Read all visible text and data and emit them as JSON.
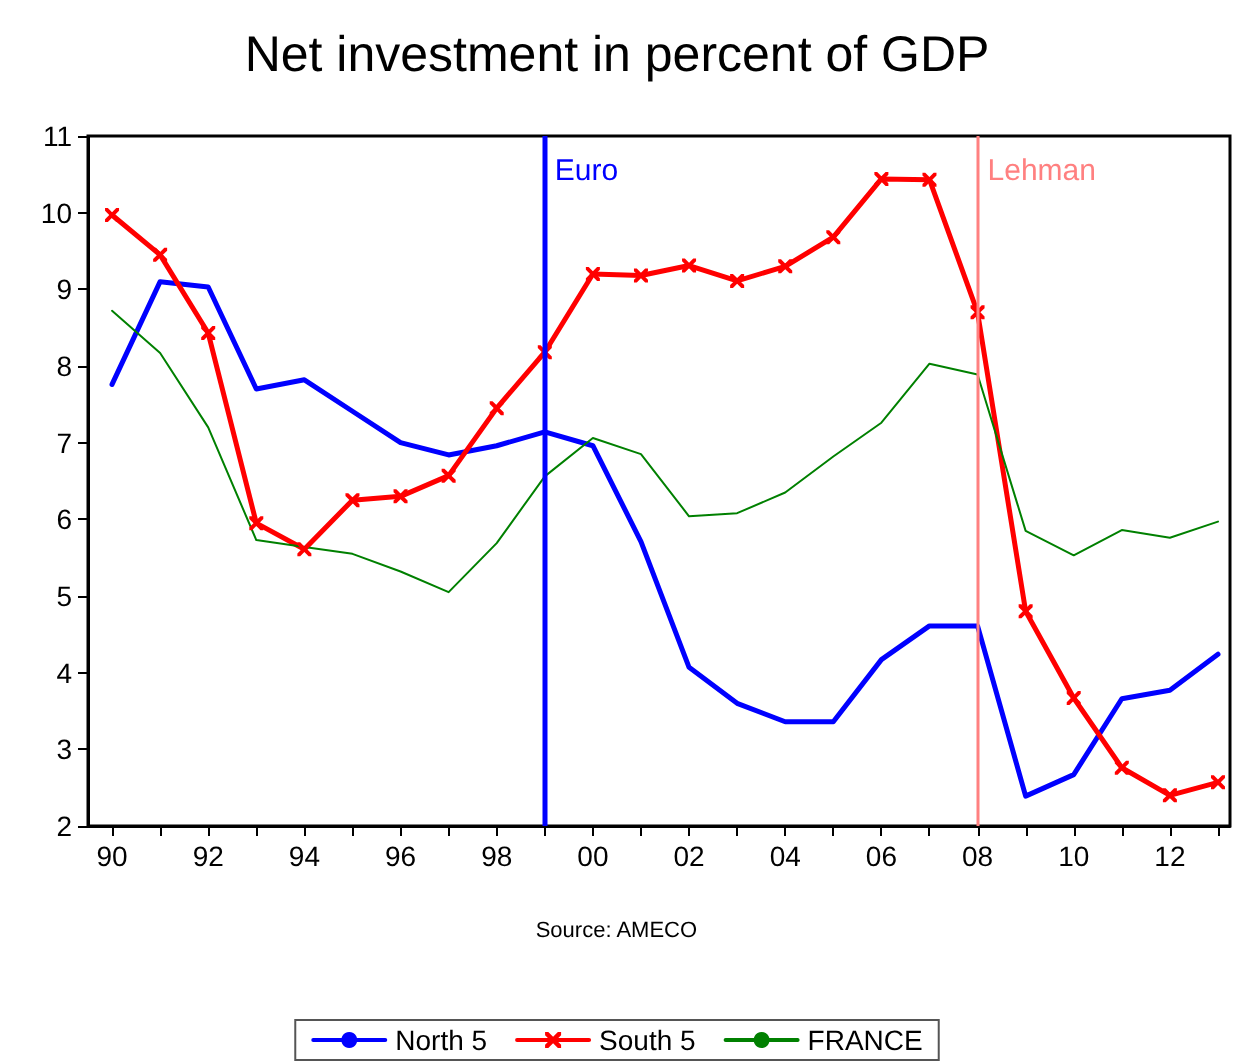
{
  "chart_data": {
    "type": "line",
    "title": "Net investment in percent of GDP",
    "x": [
      1990,
      1991,
      1992,
      1993,
      1994,
      1995,
      1996,
      1997,
      1998,
      1999,
      2000,
      2001,
      2002,
      2003,
      2004,
      2005,
      2006,
      2007,
      2008,
      2009,
      2010,
      2011,
      2012,
      2013
    ],
    "series": [
      {
        "name": "North 5",
        "color": "#0000ff",
        "marker": "none",
        "values": [
          7.76,
          9.1,
          9.03,
          7.7,
          7.82,
          7.41,
          7.0,
          6.84,
          6.96,
          7.14,
          6.96,
          5.71,
          4.07,
          3.6,
          3.36,
          3.36,
          4.17,
          4.61,
          4.61,
          2.39,
          2.67,
          3.66,
          3.77,
          4.24
        ]
      },
      {
        "name": "South 5",
        "color": "#ff0000",
        "marker": "cross",
        "values": [
          9.97,
          9.45,
          8.43,
          5.95,
          5.61,
          6.25,
          6.3,
          6.57,
          7.45,
          8.18,
          9.2,
          9.18,
          9.31,
          9.11,
          9.3,
          9.68,
          10.44,
          10.43,
          8.7,
          4.8,
          3.67,
          2.76,
          2.4,
          2.57
        ]
      },
      {
        "name": "FRANCE",
        "color": "#008000",
        "marker": "none",
        "values": [
          8.72,
          8.17,
          7.2,
          5.73,
          5.64,
          5.55,
          5.32,
          5.05,
          5.69,
          6.56,
          7.06,
          6.85,
          6.04,
          6.08,
          6.35,
          6.82,
          7.26,
          8.03,
          7.89,
          5.85,
          5.53,
          5.86,
          5.76,
          5.97
        ]
      }
    ],
    "xlim": [
      1989.5,
      2013.25
    ],
    "xticks": [
      {
        "value": 1990,
        "label": "90"
      },
      {
        "value": 1991,
        "label": null
      },
      {
        "value": 1992,
        "label": "92"
      },
      {
        "value": 1993,
        "label": null
      },
      {
        "value": 1994,
        "label": "94"
      },
      {
        "value": 1995,
        "label": null
      },
      {
        "value": 1996,
        "label": "96"
      },
      {
        "value": 1997,
        "label": null
      },
      {
        "value": 1998,
        "label": "98"
      },
      {
        "value": 1999,
        "label": null
      },
      {
        "value": 2000,
        "label": "00"
      },
      {
        "value": 2001,
        "label": null
      },
      {
        "value": 2002,
        "label": "02"
      },
      {
        "value": 2003,
        "label": null
      },
      {
        "value": 2004,
        "label": "04"
      },
      {
        "value": 2005,
        "label": null
      },
      {
        "value": 2006,
        "label": "06"
      },
      {
        "value": 2007,
        "label": null
      },
      {
        "value": 2008,
        "label": "08"
      },
      {
        "value": 2009,
        "label": null
      },
      {
        "value": 2010,
        "label": "10"
      },
      {
        "value": 2011,
        "label": null
      },
      {
        "value": 2012,
        "label": "12"
      },
      {
        "value": 2013,
        "label": null
      }
    ],
    "ylim": [
      2,
      11
    ],
    "yticks": [
      2,
      3,
      4,
      5,
      6,
      7,
      8,
      9,
      10,
      11
    ],
    "ref_lines": [
      {
        "axis": "x",
        "value": 1999,
        "label": "Euro",
        "color": "#0000ff"
      },
      {
        "axis": "x",
        "value": 2008,
        "label": "Lehman",
        "color": "#ff8080"
      }
    ],
    "annotations": [
      "Source: AMECO"
    ],
    "grid": false,
    "legend": "bottom",
    "line_style": "solid"
  }
}
